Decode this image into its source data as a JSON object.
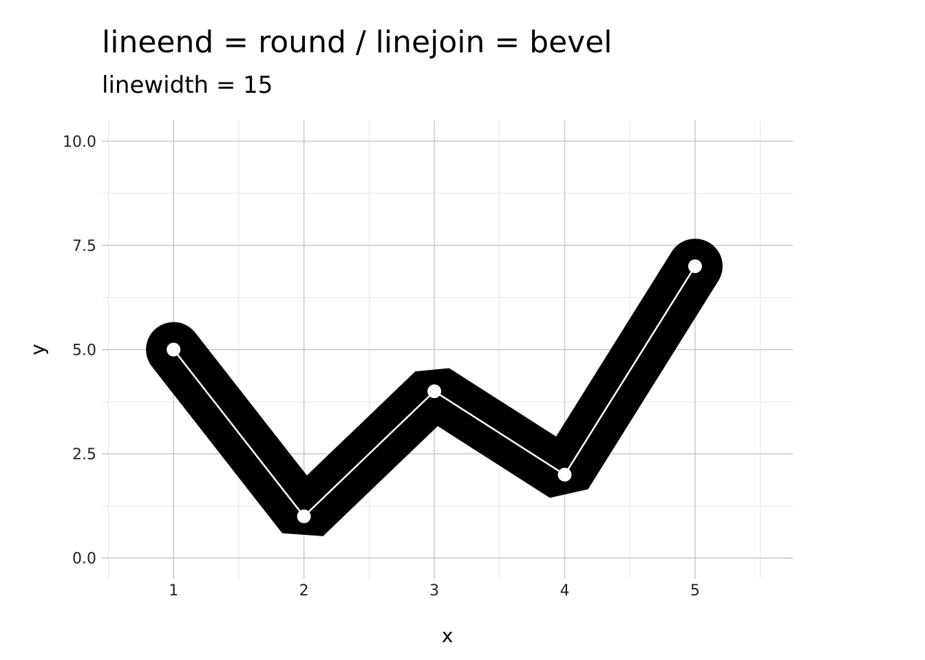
{
  "chart_data": {
    "type": "line",
    "title": "lineend = round / linejoin = bevel",
    "subtitle": "linewidth = 15",
    "xlabel": "x",
    "ylabel": "y",
    "x": [
      1,
      2,
      3,
      4,
      5
    ],
    "y": [
      5,
      1,
      4,
      2,
      7
    ],
    "xlim": [
      0.45,
      5.75
    ],
    "ylim": [
      -0.5,
      10.5
    ],
    "x_ticks": [
      "1",
      "2",
      "3",
      "4",
      "5"
    ],
    "y_ticks": [
      "0.0",
      "2.5",
      "5.0",
      "7.5",
      "10.0"
    ],
    "grid": true,
    "thick_line_color": "#000000",
    "thin_line_color": "#ffffff",
    "point_color": "#ffffff",
    "grid_major_color": "#c8c8c8",
    "grid_minor_color": "#e6e6e6"
  }
}
